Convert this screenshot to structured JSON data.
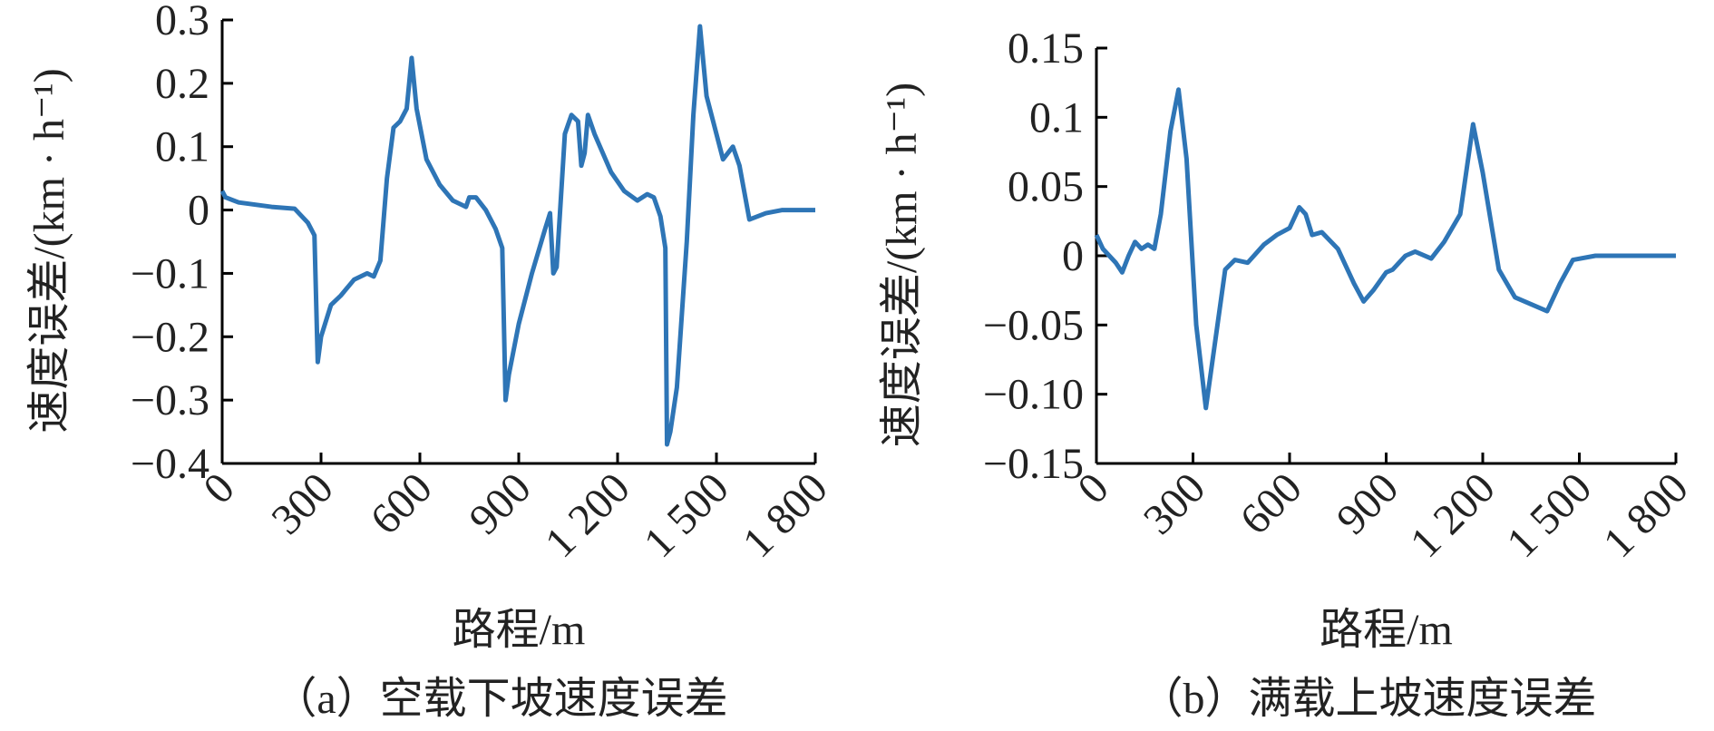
{
  "chart_data": [
    {
      "type": "line",
      "title": "（a）空载下坡速度误差",
      "xlabel": "路程/m",
      "ylabel": "速度误差/(km · h⁻¹)",
      "x": [
        0,
        10,
        50,
        150,
        220,
        260,
        280,
        290,
        300,
        330,
        360,
        400,
        440,
        460,
        480,
        500,
        520,
        540,
        560,
        575,
        590,
        620,
        660,
        700,
        740,
        750,
        770,
        800,
        830,
        850,
        860,
        870,
        900,
        940,
        980,
        995,
        1005,
        1015,
        1040,
        1060,
        1080,
        1090,
        1100,
        1110,
        1130,
        1180,
        1220,
        1260,
        1290,
        1310,
        1330,
        1345,
        1350,
        1360,
        1380,
        1410,
        1430,
        1450,
        1470,
        1490,
        1520,
        1550,
        1570,
        1600,
        1650,
        1700,
        1800
      ],
      "series": [
        {
          "color": "#2e75b6",
          "values": [
            0.03,
            0.02,
            0.012,
            0.005,
            0.002,
            -0.02,
            -0.04,
            -0.24,
            -0.2,
            -0.15,
            -0.135,
            -0.11,
            -0.1,
            -0.105,
            -0.08,
            0.05,
            0.13,
            0.14,
            0.16,
            0.24,
            0.16,
            0.08,
            0.04,
            0.015,
            0.005,
            0.02,
            0.02,
            0.0,
            -0.03,
            -0.06,
            -0.3,
            -0.26,
            -0.18,
            -0.1,
            -0.03,
            -0.005,
            -0.1,
            -0.09,
            0.12,
            0.15,
            0.14,
            0.07,
            0.09,
            0.15,
            0.12,
            0.06,
            0.03,
            0.015,
            0.025,
            0.02,
            -0.01,
            -0.06,
            -0.37,
            -0.35,
            -0.28,
            -0.05,
            0.15,
            0.29,
            0.18,
            0.14,
            0.08,
            0.1,
            0.07,
            -0.015,
            -0.005,
            0.0,
            0.0
          ]
        }
      ],
      "xlim": [
        0,
        1800
      ],
      "xticks": [
        0,
        300,
        600,
        900,
        {
          "value": 1200,
          "label": "1 200"
        },
        {
          "value": 1500,
          "label": "1 500"
        },
        {
          "value": 1800,
          "label": "1 800"
        }
      ],
      "ylim": [
        -0.4,
        0.3
      ],
      "yticks": [
        {
          "value": -0.4,
          "label": "−0.4"
        },
        {
          "value": -0.3,
          "label": "−0.3"
        },
        {
          "value": -0.2,
          "label": "−0.2"
        },
        {
          "value": -0.1,
          "label": "−0.1"
        },
        0,
        0.1,
        0.2,
        0.3
      ]
    },
    {
      "type": "line",
      "title": "（b）满载上坡速度误差",
      "xlabel": "路程/m",
      "ylabel": "速度误差/(km · h⁻¹)",
      "x": [
        0,
        20,
        60,
        80,
        100,
        120,
        140,
        160,
        180,
        200,
        230,
        255,
        280,
        310,
        340,
        370,
        400,
        430,
        470,
        520,
        560,
        600,
        630,
        650,
        670,
        700,
        750,
        800,
        830,
        860,
        900,
        920,
        960,
        990,
        1040,
        1080,
        1130,
        1170,
        1200,
        1250,
        1300,
        1350,
        1400,
        1440,
        1480,
        1550,
        1800
      ],
      "series": [
        {
          "color": "#2e75b6",
          "values": [
            0.015,
            0.005,
            -0.005,
            -0.012,
            0.0,
            0.01,
            0.005,
            0.008,
            0.005,
            0.03,
            0.09,
            0.12,
            0.07,
            -0.05,
            -0.11,
            -0.06,
            -0.01,
            -0.003,
            -0.005,
            0.008,
            0.015,
            0.02,
            0.035,
            0.03,
            0.015,
            0.017,
            0.005,
            -0.02,
            -0.033,
            -0.025,
            -0.012,
            -0.01,
            0.0,
            0.003,
            -0.002,
            0.01,
            0.03,
            0.095,
            0.06,
            -0.01,
            -0.03,
            -0.035,
            -0.04,
            -0.02,
            -0.003,
            0.0,
            0.0
          ]
        }
      ],
      "xlim": [
        0,
        1800
      ],
      "xticks": [
        0,
        300,
        600,
        900,
        {
          "value": 1200,
          "label": "1 200"
        },
        {
          "value": 1500,
          "label": "1 500"
        },
        {
          "value": 1800,
          "label": "1 800"
        }
      ],
      "ylim": [
        -0.15,
        0.15
      ],
      "yticks": [
        {
          "value": -0.15,
          "label": "−0.15"
        },
        {
          "value": -0.1,
          "label": "−0.10"
        },
        {
          "value": -0.05,
          "label": "−0.05"
        },
        0,
        0.05,
        0.1,
        0.15
      ]
    }
  ]
}
